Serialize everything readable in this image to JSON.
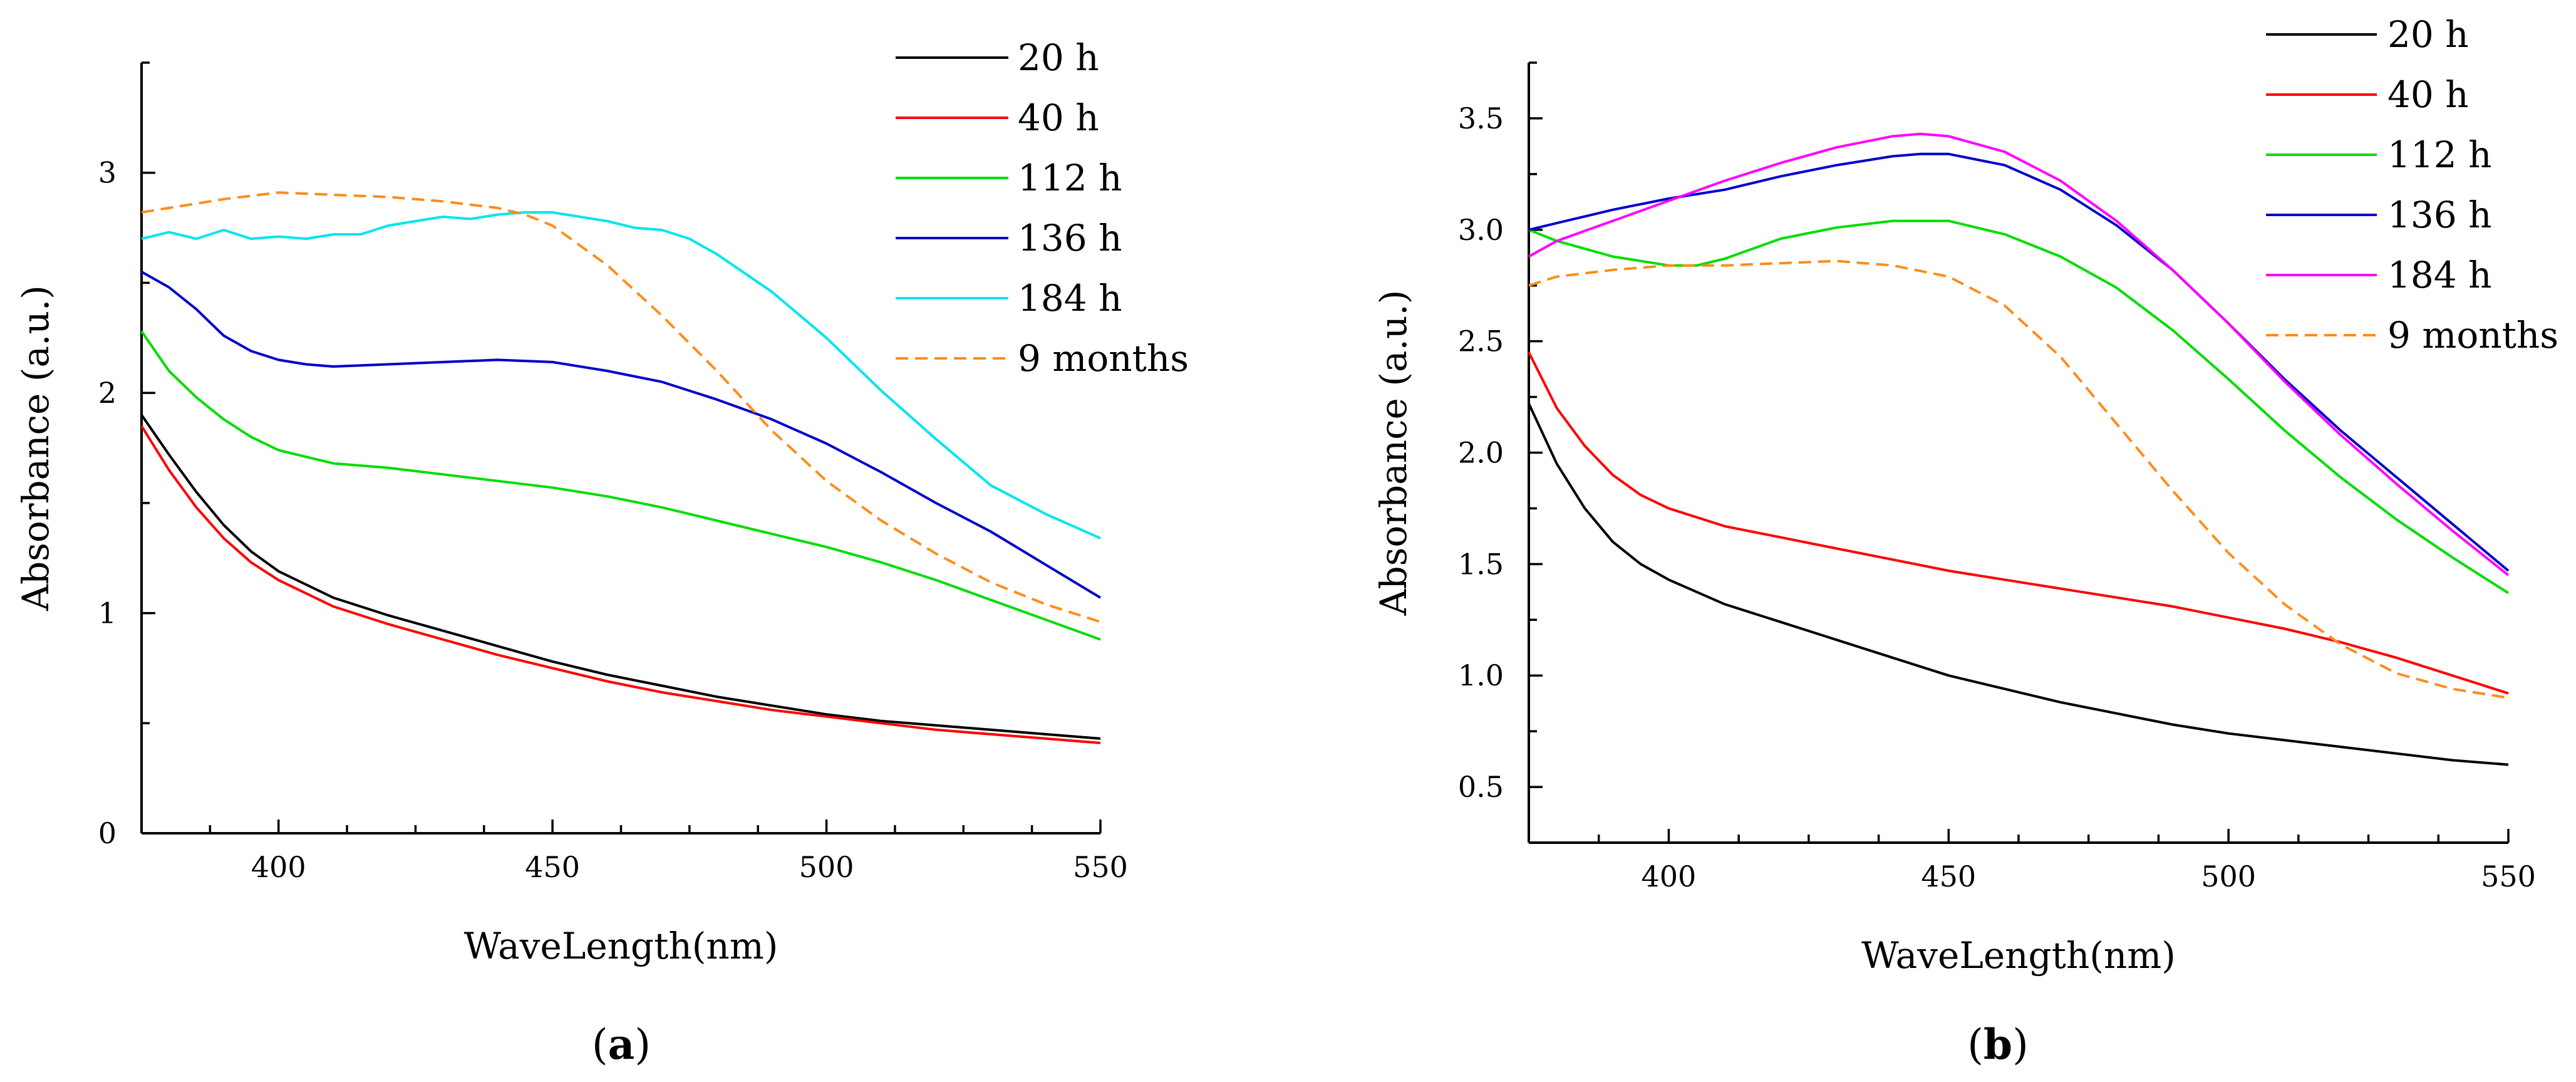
{
  "chart_data": [
    {
      "type": "line",
      "panel_label": {
        "open": "(",
        "letter": "a",
        "close": ")"
      },
      "xlabel": "WaveLength(nm)",
      "ylabel": "Absorbance (a.u.)",
      "xlim": [
        375,
        550
      ],
      "ylim": [
        0,
        3.5
      ],
      "xticks": [
        400,
        450,
        500,
        550
      ],
      "xtick_labels": [
        "400",
        "450",
        "500",
        "550"
      ],
      "yticks": [
        0,
        1,
        2,
        3
      ],
      "ytick_labels": [
        "0",
        "1",
        "2",
        "3"
      ],
      "legend_position": "top-right",
      "series": [
        {
          "name": "20 h",
          "color": "#000000",
          "dash": "solid",
          "x": [
            375,
            380,
            385,
            390,
            395,
            400,
            410,
            420,
            430,
            440,
            450,
            460,
            470,
            480,
            490,
            500,
            510,
            520,
            530,
            540,
            550
          ],
          "y": [
            1.9,
            1.72,
            1.55,
            1.4,
            1.28,
            1.19,
            1.07,
            0.99,
            0.92,
            0.85,
            0.78,
            0.72,
            0.67,
            0.62,
            0.58,
            0.54,
            0.51,
            0.49,
            0.47,
            0.45,
            0.43
          ]
        },
        {
          "name": "40 h",
          "color": "#ff0000",
          "dash": "solid",
          "x": [
            375,
            380,
            385,
            390,
            395,
            400,
            410,
            420,
            430,
            440,
            450,
            460,
            470,
            480,
            490,
            500,
            510,
            520,
            530,
            540,
            550
          ],
          "y": [
            1.85,
            1.65,
            1.48,
            1.34,
            1.23,
            1.15,
            1.03,
            0.95,
            0.88,
            0.81,
            0.75,
            0.69,
            0.64,
            0.6,
            0.56,
            0.53,
            0.5,
            0.47,
            0.45,
            0.43,
            0.41
          ]
        },
        {
          "name": "112 h",
          "color": "#00dd00",
          "dash": "solid",
          "x": [
            375,
            380,
            385,
            390,
            395,
            400,
            410,
            420,
            430,
            440,
            450,
            460,
            470,
            480,
            490,
            500,
            510,
            520,
            530,
            540,
            550
          ],
          "y": [
            2.28,
            2.1,
            1.98,
            1.88,
            1.8,
            1.74,
            1.68,
            1.66,
            1.63,
            1.6,
            1.57,
            1.53,
            1.48,
            1.42,
            1.36,
            1.3,
            1.23,
            1.15,
            1.06,
            0.97,
            0.88
          ]
        },
        {
          "name": "136 h",
          "color": "#0000cc",
          "dash": "solid",
          "x": [
            375,
            380,
            385,
            390,
            395,
            400,
            405,
            410,
            420,
            430,
            440,
            450,
            460,
            470,
            480,
            490,
            500,
            510,
            520,
            530,
            540,
            550
          ],
          "y": [
            2.55,
            2.48,
            2.38,
            2.26,
            2.19,
            2.15,
            2.13,
            2.12,
            2.13,
            2.14,
            2.15,
            2.14,
            2.1,
            2.05,
            1.97,
            1.88,
            1.77,
            1.64,
            1.5,
            1.37,
            1.22,
            1.07
          ]
        },
        {
          "name": "184 h",
          "color": "#00e5ee",
          "dash": "solid",
          "x": [
            375,
            380,
            385,
            390,
            395,
            400,
            405,
            410,
            415,
            420,
            425,
            430,
            435,
            440,
            445,
            450,
            455,
            460,
            465,
            470,
            475,
            480,
            490,
            500,
            510,
            520,
            530,
            540,
            550
          ],
          "y": [
            2.7,
            2.73,
            2.7,
            2.74,
            2.7,
            2.71,
            2.7,
            2.72,
            2.72,
            2.76,
            2.78,
            2.8,
            2.79,
            2.81,
            2.82,
            2.82,
            2.8,
            2.78,
            2.75,
            2.74,
            2.7,
            2.63,
            2.46,
            2.25,
            2.01,
            1.79,
            1.58,
            1.45,
            1.34
          ]
        },
        {
          "name": "9 months",
          "color": "#ff8c1a",
          "dash": "dashed",
          "x": [
            375,
            380,
            390,
            400,
            410,
            420,
            430,
            440,
            445,
            450,
            460,
            470,
            480,
            490,
            500,
            510,
            520,
            530,
            540,
            550
          ],
          "y": [
            2.82,
            2.84,
            2.88,
            2.91,
            2.9,
            2.89,
            2.87,
            2.84,
            2.81,
            2.76,
            2.58,
            2.35,
            2.1,
            1.83,
            1.6,
            1.42,
            1.27,
            1.14,
            1.04,
            0.96
          ]
        }
      ]
    },
    {
      "type": "line",
      "panel_label": {
        "open": "(",
        "letter": "b",
        "close": ")"
      },
      "xlabel": "WaveLength(nm)",
      "ylabel": "Absorbance (a.u.)",
      "xlim": [
        375,
        550
      ],
      "ylim": [
        0.25,
        3.75
      ],
      "xticks": [
        400,
        450,
        500,
        550
      ],
      "xtick_labels": [
        "400",
        "450",
        "500",
        "550"
      ],
      "yticks": [
        0.5,
        1.0,
        1.5,
        2.0,
        2.5,
        3.0,
        3.5
      ],
      "ytick_labels": [
        "0.5",
        "1.0",
        "1.5",
        "2.0",
        "2.5",
        "3.0",
        "3.5"
      ],
      "legend_position": "top-right",
      "series": [
        {
          "name": "20 h",
          "color": "#000000",
          "dash": "solid",
          "x": [
            375,
            380,
            385,
            390,
            395,
            400,
            410,
            420,
            430,
            440,
            450,
            460,
            470,
            480,
            490,
            500,
            510,
            520,
            530,
            540,
            550
          ],
          "y": [
            2.22,
            1.95,
            1.75,
            1.6,
            1.5,
            1.43,
            1.32,
            1.24,
            1.16,
            1.08,
            1.0,
            0.94,
            0.88,
            0.83,
            0.78,
            0.74,
            0.71,
            0.68,
            0.65,
            0.62,
            0.6
          ]
        },
        {
          "name": "40 h",
          "color": "#ff0000",
          "dash": "solid",
          "x": [
            375,
            380,
            385,
            390,
            395,
            400,
            410,
            420,
            430,
            440,
            450,
            460,
            470,
            480,
            490,
            500,
            510,
            520,
            530,
            540,
            550
          ],
          "y": [
            2.45,
            2.2,
            2.03,
            1.9,
            1.81,
            1.75,
            1.67,
            1.62,
            1.57,
            1.52,
            1.47,
            1.43,
            1.39,
            1.35,
            1.31,
            1.26,
            1.21,
            1.15,
            1.08,
            1.0,
            0.92
          ]
        },
        {
          "name": "112 h",
          "color": "#00dd00",
          "dash": "solid",
          "x": [
            375,
            380,
            390,
            400,
            405,
            410,
            420,
            430,
            440,
            450,
            460,
            470,
            480,
            490,
            500,
            510,
            520,
            530,
            540,
            550
          ],
          "y": [
            3.0,
            2.95,
            2.88,
            2.84,
            2.84,
            2.87,
            2.96,
            3.01,
            3.04,
            3.04,
            2.98,
            2.88,
            2.74,
            2.55,
            2.33,
            2.1,
            1.89,
            1.7,
            1.53,
            1.37
          ]
        },
        {
          "name": "136 h",
          "color": "#0000cc",
          "dash": "solid",
          "x": [
            375,
            380,
            390,
            400,
            410,
            420,
            430,
            440,
            445,
            450,
            460,
            470,
            480,
            490,
            500,
            510,
            520,
            530,
            540,
            550
          ],
          "y": [
            3.0,
            3.03,
            3.09,
            3.14,
            3.18,
            3.24,
            3.29,
            3.33,
            3.34,
            3.34,
            3.29,
            3.18,
            3.02,
            2.82,
            2.58,
            2.33,
            2.1,
            1.89,
            1.68,
            1.47
          ]
        },
        {
          "name": "184 h",
          "color": "#ff00ff",
          "dash": "solid",
          "x": [
            375,
            380,
            390,
            400,
            410,
            420,
            430,
            440,
            445,
            450,
            460,
            470,
            480,
            490,
            500,
            510,
            520,
            530,
            540,
            550
          ],
          "y": [
            2.88,
            2.95,
            3.04,
            3.13,
            3.22,
            3.3,
            3.37,
            3.42,
            3.43,
            3.42,
            3.35,
            3.22,
            3.04,
            2.82,
            2.58,
            2.32,
            2.08,
            1.86,
            1.65,
            1.45
          ]
        },
        {
          "name": "9 months",
          "color": "#ff8c1a",
          "dash": "dashed",
          "x": [
            375,
            380,
            390,
            400,
            410,
            420,
            430,
            440,
            450,
            460,
            470,
            480,
            490,
            500,
            510,
            520,
            530,
            540,
            550
          ],
          "y": [
            2.75,
            2.79,
            2.82,
            2.84,
            2.84,
            2.85,
            2.86,
            2.84,
            2.79,
            2.66,
            2.43,
            2.13,
            1.83,
            1.55,
            1.32,
            1.14,
            1.01,
            0.94,
            0.9
          ]
        }
      ]
    }
  ]
}
